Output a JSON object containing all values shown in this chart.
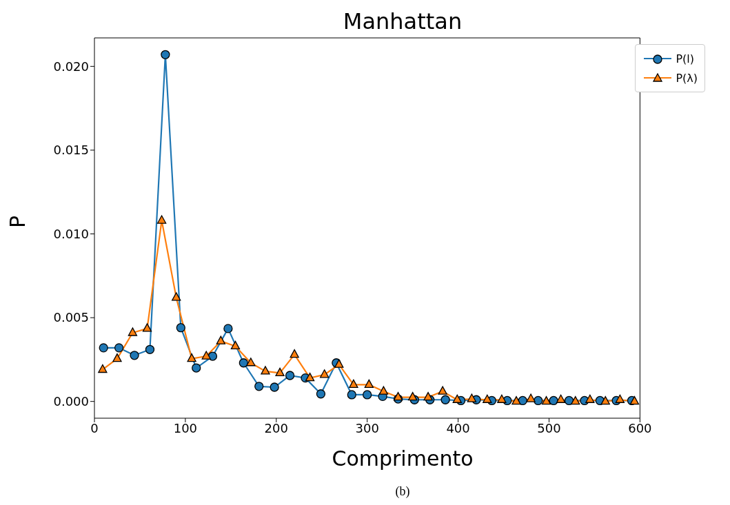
{
  "chart_data": {
    "type": "line",
    "title": "Manhattan",
    "xlabel": "Comprimento",
    "ylabel": "P",
    "annotations": [
      "(b)"
    ],
    "xlim": [
      0,
      600
    ],
    "xticks": [
      0,
      100,
      200,
      300,
      400,
      500,
      600
    ],
    "ylim": [
      -0.001,
      0.0217
    ],
    "yticks": [
      {
        "value": 0,
        "label": "0.000"
      },
      {
        "value": 0.005,
        "label": "0.005"
      },
      {
        "value": 0.01,
        "label": "0.010"
      },
      {
        "value": 0.015,
        "label": "0.015"
      },
      {
        "value": 0.02,
        "label": "0.020"
      }
    ],
    "grid": false,
    "legend": "top right",
    "line_style": "solid",
    "series": [
      {
        "name": "P(l)",
        "color": "#1f77b4",
        "marker": "circle",
        "x": [
          10,
          27,
          44,
          61,
          78,
          95,
          112,
          130,
          147,
          164,
          181,
          198,
          215,
          232,
          249,
          266,
          283,
          300,
          317,
          334,
          352,
          369,
          386,
          403,
          420,
          437,
          454,
          471,
          488,
          505,
          522,
          539,
          556,
          574,
          591
        ],
        "values": [
          0.0032,
          0.0032,
          0.00275,
          0.0031,
          0.0207,
          0.0044,
          0.002,
          0.0027,
          0.00435,
          0.0023,
          0.0009,
          0.00085,
          0.00155,
          0.0014,
          0.00045,
          0.0023,
          0.0004,
          0.0004,
          0.0003,
          0.00015,
          0.0001,
          0.0001,
          0.0001,
          5e-05,
          0.0001,
          5e-05,
          5e-05,
          5e-05,
          5e-05,
          5e-05,
          5e-05,
          5e-05,
          5e-05,
          5e-05,
          5e-05
        ]
      },
      {
        "name": "P(λ)",
        "color": "#ff7f0e",
        "marker": "triangle",
        "x": [
          9,
          25,
          42,
          58,
          74,
          90,
          107,
          123,
          139,
          155,
          172,
          188,
          204,
          220,
          237,
          253,
          269,
          285,
          302,
          318,
          334,
          350,
          367,
          383,
          399,
          415,
          432,
          448,
          464,
          480,
          497,
          513,
          529,
          545,
          562,
          578,
          594
        ],
        "values": [
          0.0019,
          0.00255,
          0.0041,
          0.00435,
          0.0108,
          0.0062,
          0.00255,
          0.0027,
          0.0036,
          0.0033,
          0.0023,
          0.0018,
          0.0017,
          0.0028,
          0.0014,
          0.0016,
          0.0022,
          0.001,
          0.001,
          0.0006,
          0.00025,
          0.00025,
          0.00025,
          0.0006,
          0.0001,
          0.00015,
          0.0001,
          0.0001,
          0,
          0.00015,
          0,
          0.0001,
          0,
          0.0001,
          0,
          0.0001,
          0
        ]
      }
    ]
  }
}
